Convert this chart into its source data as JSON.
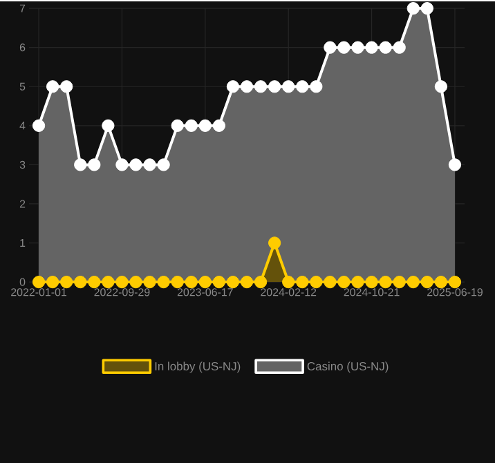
{
  "chart_data": {
    "type": "area",
    "categories": [
      "2022-01-01",
      null,
      null,
      null,
      null,
      null,
      "2022-09-29",
      null,
      null,
      null,
      null,
      null,
      "2023-06-17",
      null,
      null,
      null,
      null,
      null,
      "2024-02-12",
      null,
      null,
      null,
      null,
      null,
      "2024-10-21",
      null,
      null,
      null,
      null,
      null,
      "2025-06-19"
    ],
    "series": [
      {
        "name": "In lobby (US-NJ)",
        "color": "#ffcc00",
        "values": [
          0,
          0,
          0,
          0,
          0,
          0,
          0,
          0,
          0,
          0,
          0,
          0,
          0,
          0,
          0,
          0,
          0,
          1,
          0,
          0,
          0,
          0,
          0,
          0,
          0,
          0,
          0,
          0,
          0,
          0,
          0
        ]
      },
      {
        "name": "Casino (US-NJ)",
        "color": "#ffffff",
        "values": [
          4,
          5,
          5,
          3,
          3,
          4,
          3,
          3,
          3,
          3,
          4,
          4,
          4,
          4,
          5,
          5,
          5,
          5,
          5,
          5,
          5,
          6,
          6,
          6,
          6,
          6,
          6,
          7,
          7,
          5,
          3
        ]
      }
    ],
    "ylim": [
      0,
      7
    ],
    "yticks": [
      0,
      1,
      2,
      3,
      4,
      5,
      6,
      7
    ],
    "grid": true,
    "legend": "bottom",
    "marker": "circle"
  }
}
